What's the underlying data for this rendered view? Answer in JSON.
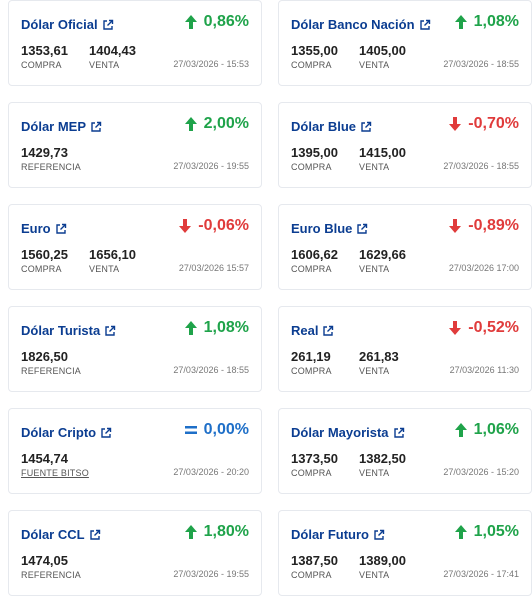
{
  "colors": {
    "title": "#0b3d91",
    "up": "#1fa34a",
    "down": "#e03b3b",
    "flat": "#1e6fc8"
  },
  "cards": [
    {
      "title": "Dólar Oficial",
      "direction": "up",
      "change": "0,86%",
      "v1": "1353,61",
      "l1": "COMPRA",
      "v2": "1404,43",
      "l2": "VENTA",
      "date": "27/03/2026 - 15:53"
    },
    {
      "title": "Dólar Banco Nación",
      "direction": "up",
      "change": "1,08%",
      "v1": "1355,00",
      "l1": "COMPRA",
      "v2": "1405,00",
      "l2": "VENTA",
      "date": "27/03/2026 - 18:55"
    },
    {
      "title": "Dólar MEP",
      "direction": "up",
      "change": "2,00%",
      "v1": "1429,73",
      "l1": "REFERENCIA",
      "date": "27/03/2026 - 19:55"
    },
    {
      "title": "Dólar Blue",
      "direction": "down",
      "change": "-0,70%",
      "v1": "1395,00",
      "l1": "COMPRA",
      "v2": "1415,00",
      "l2": "VENTA",
      "date": "27/03/2026 - 18:55"
    },
    {
      "title": "Euro",
      "direction": "down",
      "change": "-0,06%",
      "v1": "1560,25",
      "l1": "COMPRA",
      "v2": "1656,10",
      "l2": "VENTA",
      "date": "27/03/2026 15:57"
    },
    {
      "title": "Euro Blue",
      "direction": "down",
      "change": "-0,89%",
      "v1": "1606,62",
      "l1": "COMPRA",
      "v2": "1629,66",
      "l2": "VENTA",
      "date": "27/03/2026 17:00"
    },
    {
      "title": "Dólar Turista",
      "direction": "up",
      "change": "1,08%",
      "v1": "1826,50",
      "l1": "REFERENCIA",
      "date": "27/03/2026 - 18:55"
    },
    {
      "title": "Real",
      "direction": "down",
      "change": "-0,52%",
      "v1": "261,19",
      "l1": "COMPRA",
      "v2": "261,83",
      "l2": "VENTA",
      "date": "27/03/2026 11:30"
    },
    {
      "title": "Dólar Cripto",
      "direction": "flat",
      "change": "0,00%",
      "v1": "1454,74",
      "l1": "FUENTE BITSO",
      "l1link": true,
      "date": "27/03/2026 - 20:20"
    },
    {
      "title": "Dólar Mayorista",
      "direction": "up",
      "change": "1,06%",
      "v1": "1373,50",
      "l1": "COMPRA",
      "v2": "1382,50",
      "l2": "VENTA",
      "date": "27/03/2026 - 15:20"
    },
    {
      "title": "Dólar CCL",
      "direction": "up",
      "change": "1,80%",
      "v1": "1474,05",
      "l1": "REFERENCIA",
      "date": "27/03/2026 - 19:55"
    },
    {
      "title": "Dólar Futuro",
      "direction": "up",
      "change": "1,05%",
      "v1": "1387,50",
      "l1": "COMPRA",
      "v2": "1389,00",
      "l2": "VENTA",
      "date": "27/03/2026 - 17:41"
    }
  ]
}
